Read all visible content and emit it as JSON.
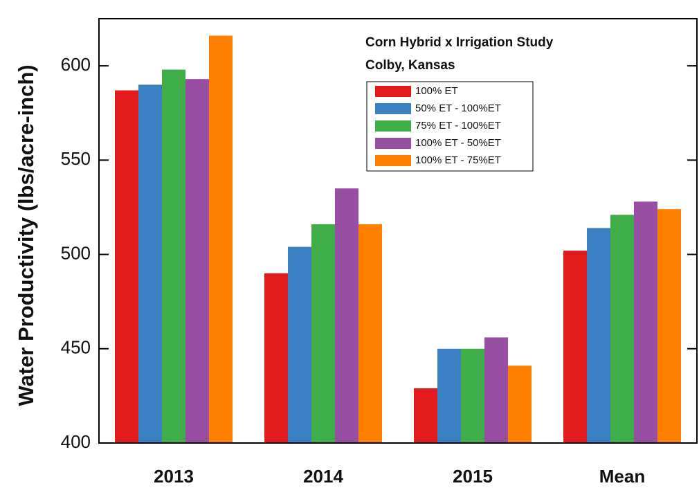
{
  "chart_data": {
    "type": "bar",
    "title": "Corn Hybrid x Irrigation Study",
    "subtitle": "Colby, Kansas",
    "y_label": "Water Productivity (lbs/acre-inch)",
    "categories": [
      "2013",
      "2014",
      "2015",
      "Mean"
    ],
    "series": [
      {
        "name": "100% ET",
        "color": "#e31a1c",
        "values": [
          587,
          490,
          429,
          502
        ]
      },
      {
        "name": "50% ET - 100%ET",
        "color": "#3a7fc1",
        "values": [
          590,
          504,
          450,
          514
        ]
      },
      {
        "name": "75% ET - 100%ET",
        "color": "#3fae49",
        "values": [
          598,
          516,
          450,
          521
        ]
      },
      {
        "name": "100% ET - 50%ET",
        "color": "#984ea3",
        "values": [
          593,
          535,
          456,
          528
        ]
      },
      {
        "name": "100% ET - 75%ET",
        "color": "#ff8000",
        "values": [
          616,
          516,
          441,
          524
        ]
      }
    ],
    "ylim": [
      400,
      625
    ],
    "yticks": [
      400,
      450,
      500,
      550,
      600
    ],
    "grid": false
  }
}
